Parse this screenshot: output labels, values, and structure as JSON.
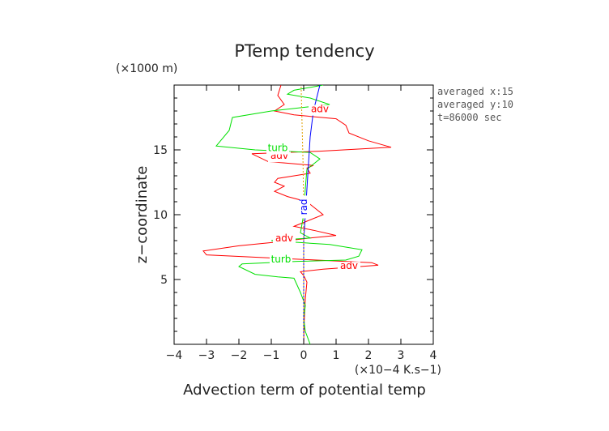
{
  "chart_data": {
    "type": "line",
    "title": "PTemp tendency",
    "xlabel": "Advection term of potential temp",
    "x_multiplier": "(×10−4 K.s−1)",
    "ylabel": "z−coordinate",
    "y_multiplier": "(×1000 m)",
    "xlim": [
      -4,
      4
    ],
    "ylim": [
      0,
      20
    ],
    "x_ticks": [
      "−4",
      "−3",
      "−2",
      "−1",
      "0",
      "1",
      "2",
      "3",
      "4"
    ],
    "y_ticks": [
      "5",
      "10",
      "15"
    ],
    "y_tick_values": [
      5,
      10,
      15
    ],
    "grid": false,
    "side_info": [
      "averaged  x:15",
      "averaged  y:10",
      "t=86000 sec"
    ],
    "series": [
      {
        "name": "adv",
        "color": "#ff0000",
        "points": [
          [
            0,
            0
          ],
          [
            0.02,
            2
          ],
          [
            0.05,
            3.5
          ],
          [
            0.1,
            4.8
          ],
          [
            0,
            5.3
          ],
          [
            -0.1,
            5.6
          ],
          [
            0.6,
            5.8
          ],
          [
            2.3,
            6.1
          ],
          [
            2.1,
            6.3
          ],
          [
            0.4,
            6.5
          ],
          [
            -3.0,
            6.9
          ],
          [
            -3.1,
            7.2
          ],
          [
            -2.0,
            7.6
          ],
          [
            -0.8,
            7.9
          ],
          [
            0.2,
            8.2
          ],
          [
            1.0,
            8.4
          ],
          [
            0.3,
            8.8
          ],
          [
            -0.3,
            9.1
          ],
          [
            0.1,
            9.5
          ],
          [
            0.6,
            10.0
          ],
          [
            0.3,
            10.6
          ],
          [
            0.1,
            11.0
          ],
          [
            -0.5,
            11.4
          ],
          [
            -0.9,
            11.8
          ],
          [
            -0.6,
            12.2
          ],
          [
            -0.9,
            12.5
          ],
          [
            -0.8,
            12.8
          ],
          [
            0.2,
            13.2
          ],
          [
            0.1,
            13.6
          ],
          [
            0.3,
            13.8
          ],
          [
            -1.1,
            14.1
          ],
          [
            -1.6,
            14.7
          ],
          [
            0.5,
            14.9
          ],
          [
            2.7,
            15.2
          ],
          [
            2.0,
            15.7
          ],
          [
            1.4,
            16.3
          ],
          [
            1.3,
            16.9
          ],
          [
            1.0,
            17.4
          ],
          [
            -0.3,
            17.7
          ],
          [
            -0.9,
            18.0
          ],
          [
            -0.6,
            18.5
          ],
          [
            -0.8,
            19.2
          ],
          [
            -0.7,
            20
          ]
        ],
        "labels": [
          {
            "text": "adv",
            "x": 0.5,
            "y": 17.9
          },
          {
            "text": "adv",
            "x": -0.75,
            "y": 14.3
          },
          {
            "text": "adv",
            "x": -0.6,
            "y": 7.95
          },
          {
            "text": "adv",
            "x": 1.4,
            "y": 5.8
          }
        ]
      },
      {
        "name": "turb",
        "color": "#00e000",
        "points": [
          [
            0.2,
            0
          ],
          [
            0.05,
            1
          ],
          [
            0.0,
            2
          ],
          [
            0.05,
            3
          ],
          [
            -0.1,
            4
          ],
          [
            -0.3,
            5.1
          ],
          [
            -0.8,
            5.2
          ],
          [
            -1.5,
            5.4
          ],
          [
            -2.0,
            6.0
          ],
          [
            -1.9,
            6.2
          ],
          [
            -0.2,
            6.4
          ],
          [
            1.3,
            6.5
          ],
          [
            1.7,
            6.8
          ],
          [
            1.8,
            7.3
          ],
          [
            0.8,
            7.7
          ],
          [
            -1.0,
            8.0
          ],
          [
            0.2,
            8.2
          ],
          [
            -0.1,
            8.6
          ],
          [
            0.0,
            10
          ],
          [
            0.05,
            12
          ],
          [
            0.1,
            13.5
          ],
          [
            0.5,
            14.3
          ],
          [
            0.2,
            14.8
          ],
          [
            -1.5,
            15.0
          ],
          [
            -2.7,
            15.3
          ],
          [
            -2.3,
            16.5
          ],
          [
            -2.2,
            17.5
          ],
          [
            -1.0,
            18.0
          ],
          [
            0.8,
            18.5
          ],
          [
            0.2,
            19.0
          ],
          [
            -0.5,
            19.3
          ],
          [
            -0.3,
            19.6
          ],
          [
            0.6,
            20
          ]
        ],
        "labels": [
          {
            "text": "turb",
            "x": -0.8,
            "y": 14.9
          },
          {
            "text": "turb",
            "x": -0.7,
            "y": 6.3
          }
        ]
      },
      {
        "name": "rad",
        "color": "#0000ff",
        "points": [
          [
            0,
            0
          ],
          [
            0,
            4
          ],
          [
            0,
            8
          ],
          [
            0.05,
            10
          ],
          [
            0.1,
            12
          ],
          [
            0.15,
            14
          ],
          [
            0.2,
            16
          ],
          [
            0.3,
            18
          ],
          [
            0.5,
            20
          ]
        ],
        "labels": [
          {
            "text": "rad",
            "x": 0.1,
            "y": 10.6
          }
        ]
      },
      {
        "name": "",
        "color": "#e0a000",
        "dashed": true,
        "points": [
          [
            0,
            0
          ],
          [
            0,
            10
          ],
          [
            -0.02,
            14
          ],
          [
            -0.05,
            17
          ],
          [
            -0.08,
            20
          ]
        ],
        "labels": []
      }
    ]
  }
}
